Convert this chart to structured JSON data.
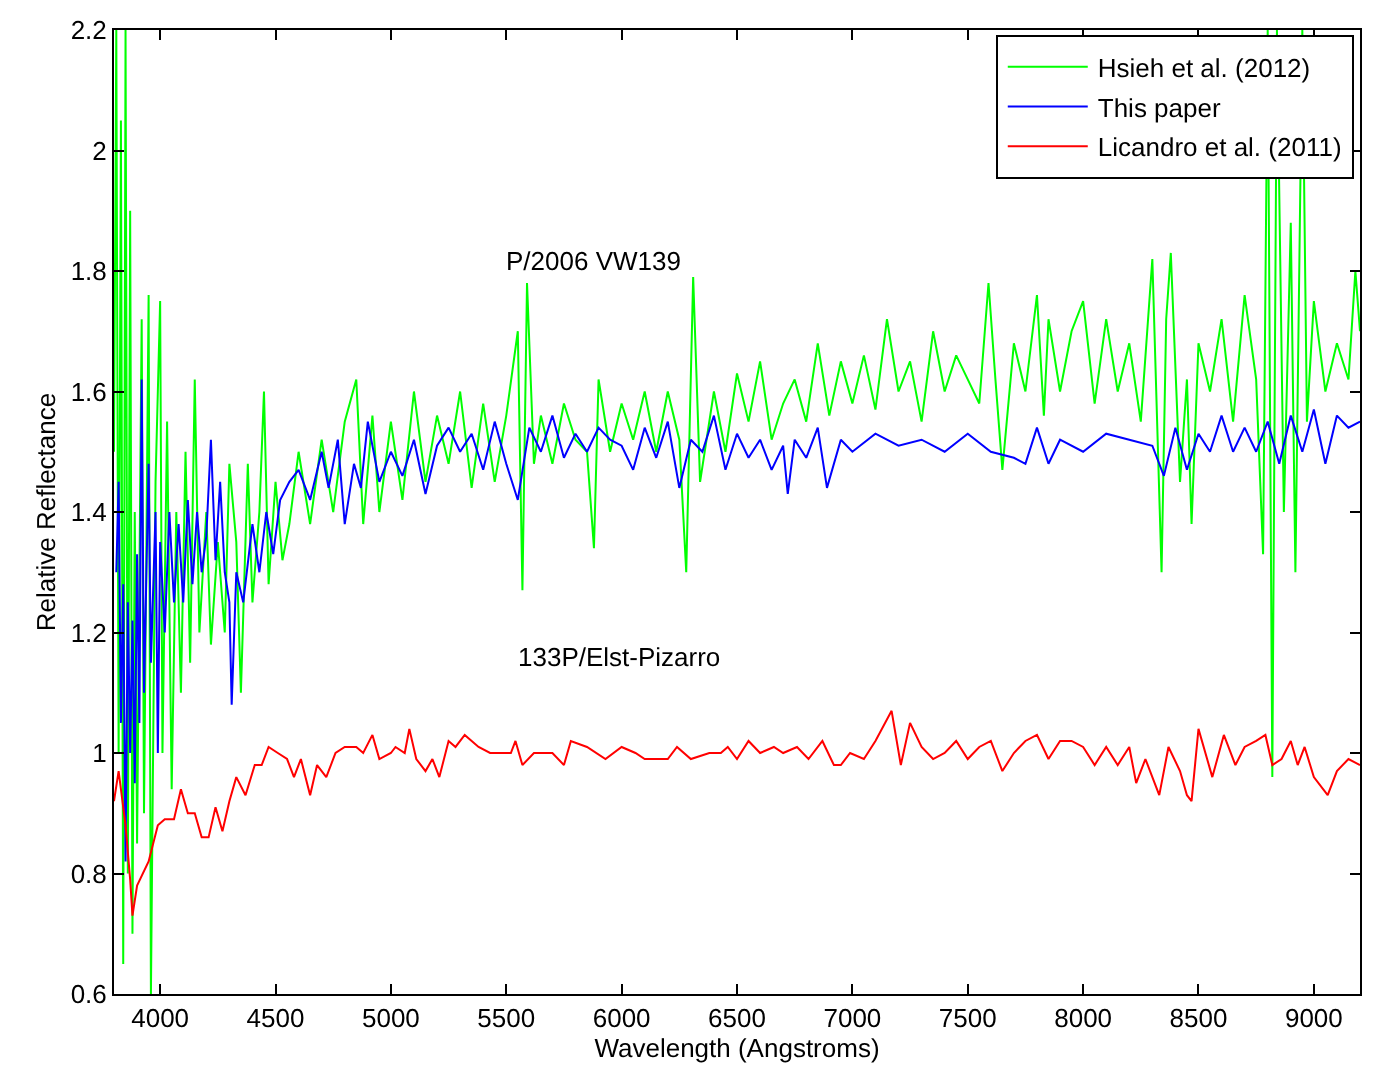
{
  "chart_data": {
    "type": "line",
    "xlabel": "Wavelength (Angstroms)",
    "ylabel": "Relative Reflectance",
    "xlim": [
      3800,
      9200
    ],
    "ylim": [
      0.6,
      2.2
    ],
    "xticks": [
      4000,
      4500,
      5000,
      5500,
      6000,
      6500,
      7000,
      7500,
      8000,
      8500,
      9000
    ],
    "yticks": [
      0.6,
      0.8,
      1,
      1.2,
      1.4,
      1.6,
      1.8,
      2,
      2.2
    ],
    "legend": "top right",
    "marker": "none",
    "line_style": "solid",
    "annotations": [
      "P/2006 VW139",
      "133P/Elst-Pizarro"
    ],
    "series": [
      {
        "name": "Hsieh et al. (2012)",
        "color": "#00ff00",
        "x": [
          3800,
          3810,
          3820,
          3830,
          3840,
          3850,
          3860,
          3870,
          3880,
          3890,
          3900,
          3920,
          3930,
          3950,
          3960,
          3980,
          4000,
          4010,
          4030,
          4050,
          4070,
          4090,
          4110,
          4130,
          4150,
          4170,
          4200,
          4220,
          4250,
          4280,
          4300,
          4330,
          4350,
          4380,
          4400,
          4430,
          4450,
          4470,
          4500,
          4530,
          4560,
          4600,
          4650,
          4700,
          4750,
          4800,
          4850,
          4880,
          4920,
          4950,
          5000,
          5050,
          5100,
          5150,
          5200,
          5250,
          5300,
          5350,
          5400,
          5450,
          5500,
          5550,
          5570,
          5590,
          5620,
          5650,
          5700,
          5750,
          5800,
          5850,
          5880,
          5900,
          5950,
          6000,
          6050,
          6100,
          6150,
          6200,
          6250,
          6280,
          6310,
          6340,
          6400,
          6450,
          6500,
          6550,
          6600,
          6650,
          6700,
          6750,
          6800,
          6850,
          6900,
          6950,
          7000,
          7050,
          7100,
          7150,
          7200,
          7250,
          7300,
          7350,
          7400,
          7450,
          7500,
          7550,
          7590,
          7620,
          7650,
          7700,
          7750,
          7800,
          7830,
          7850,
          7900,
          7950,
          8000,
          8050,
          8100,
          8150,
          8200,
          8250,
          8300,
          8340,
          8360,
          8380,
          8420,
          8450,
          8470,
          8500,
          8550,
          8600,
          8650,
          8700,
          8750,
          8780,
          8800,
          8820,
          8840,
          8870,
          8900,
          8920,
          8950,
          8970,
          9000,
          9050,
          9100,
          9150,
          9180,
          9200
        ],
        "values": [
          1.5,
          2.2,
          1.0,
          2.05,
          0.65,
          2.2,
          0.8,
          1.9,
          0.7,
          1.4,
          0.85,
          1.72,
          0.9,
          1.76,
          0.6,
          1.45,
          1.75,
          1.0,
          1.55,
          0.94,
          1.4,
          1.1,
          1.5,
          1.15,
          1.62,
          1.2,
          1.4,
          1.18,
          1.35,
          1.2,
          1.48,
          1.35,
          1.1,
          1.48,
          1.25,
          1.4,
          1.6,
          1.28,
          1.45,
          1.32,
          1.38,
          1.5,
          1.38,
          1.52,
          1.4,
          1.55,
          1.62,
          1.38,
          1.56,
          1.4,
          1.55,
          1.42,
          1.6,
          1.45,
          1.56,
          1.48,
          1.6,
          1.44,
          1.58,
          1.45,
          1.56,
          1.7,
          1.27,
          1.78,
          1.48,
          1.56,
          1.48,
          1.58,
          1.52,
          1.5,
          1.34,
          1.62,
          1.5,
          1.58,
          1.52,
          1.6,
          1.5,
          1.6,
          1.52,
          1.3,
          1.79,
          1.45,
          1.6,
          1.5,
          1.63,
          1.55,
          1.65,
          1.52,
          1.58,
          1.62,
          1.55,
          1.68,
          1.56,
          1.65,
          1.58,
          1.66,
          1.57,
          1.72,
          1.6,
          1.65,
          1.55,
          1.7,
          1.6,
          1.66,
          1.62,
          1.58,
          1.78,
          1.62,
          1.47,
          1.68,
          1.6,
          1.76,
          1.56,
          1.72,
          1.6,
          1.7,
          1.75,
          1.58,
          1.72,
          1.6,
          1.68,
          1.55,
          1.82,
          1.3,
          1.72,
          1.83,
          1.45,
          1.62,
          1.38,
          1.68,
          1.6,
          1.72,
          1.55,
          1.76,
          1.62,
          1.33,
          2.2,
          0.96,
          2.2,
          1.4,
          1.88,
          1.3,
          2.2,
          1.55,
          1.75,
          1.6,
          1.68,
          1.62,
          1.8,
          1.7
        ]
      },
      {
        "name": "This paper",
        "color": "#0000ff",
        "x": [
          3810,
          3820,
          3830,
          3840,
          3850,
          3860,
          3870,
          3880,
          3890,
          3900,
          3910,
          3920,
          3930,
          3950,
          3960,
          3980,
          3990,
          4000,
          4020,
          4040,
          4060,
          4080,
          4100,
          4120,
          4140,
          4160,
          4180,
          4200,
          4220,
          4240,
          4260,
          4280,
          4300,
          4310,
          4330,
          4360,
          4400,
          4430,
          4460,
          4490,
          4520,
          4560,
          4600,
          4650,
          4700,
          4730,
          4770,
          4800,
          4840,
          4870,
          4900,
          4950,
          5000,
          5050,
          5100,
          5150,
          5200,
          5250,
          5300,
          5350,
          5400,
          5450,
          5500,
          5550,
          5600,
          5650,
          5700,
          5750,
          5800,
          5850,
          5900,
          5950,
          6000,
          6050,
          6100,
          6150,
          6200,
          6250,
          6300,
          6350,
          6400,
          6450,
          6500,
          6550,
          6600,
          6650,
          6700,
          6720,
          6750,
          6800,
          6850,
          6890,
          6950,
          7000,
          7100,
          7200,
          7300,
          7400,
          7500,
          7600,
          7700,
          7750,
          7800,
          7850,
          7900,
          8000,
          8100,
          8200,
          8300,
          8350,
          8400,
          8450,
          8500,
          8550,
          8600,
          8650,
          8700,
          8750,
          8800,
          8850,
          8900,
          8950,
          9000,
          9050,
          9100,
          9150,
          9200
        ],
        "values": [
          1.3,
          1.45,
          1.05,
          1.28,
          0.82,
          1.25,
          1.0,
          1.22,
          0.95,
          1.33,
          1.05,
          1.62,
          1.1,
          1.48,
          1.15,
          1.4,
          1.0,
          1.35,
          1.2,
          1.4,
          1.25,
          1.38,
          1.25,
          1.42,
          1.28,
          1.4,
          1.3,
          1.36,
          1.52,
          1.32,
          1.45,
          1.3,
          1.25,
          1.08,
          1.3,
          1.25,
          1.38,
          1.3,
          1.4,
          1.33,
          1.42,
          1.45,
          1.47,
          1.42,
          1.5,
          1.44,
          1.52,
          1.38,
          1.48,
          1.44,
          1.55,
          1.45,
          1.5,
          1.46,
          1.52,
          1.43,
          1.51,
          1.54,
          1.5,
          1.53,
          1.47,
          1.55,
          1.48,
          1.42,
          1.54,
          1.5,
          1.56,
          1.49,
          1.53,
          1.5,
          1.54,
          1.52,
          1.51,
          1.47,
          1.54,
          1.49,
          1.55,
          1.44,
          1.52,
          1.5,
          1.56,
          1.47,
          1.53,
          1.49,
          1.52,
          1.47,
          1.51,
          1.43,
          1.52,
          1.49,
          1.54,
          1.44,
          1.52,
          1.5,
          1.53,
          1.51,
          1.52,
          1.5,
          1.53,
          1.5,
          1.49,
          1.48,
          1.54,
          1.48,
          1.52,
          1.5,
          1.53,
          1.52,
          1.51,
          1.46,
          1.54,
          1.47,
          1.53,
          1.5,
          1.56,
          1.5,
          1.54,
          1.5,
          1.55,
          1.48,
          1.56,
          1.5,
          1.57,
          1.48,
          1.56,
          1.54,
          1.55
        ]
      },
      {
        "name": "Licandro et al. (2011)",
        "color": "#ff0000",
        "x": [
          3800,
          3820,
          3850,
          3870,
          3880,
          3900,
          3950,
          3990,
          4020,
          4060,
          4090,
          4120,
          4150,
          4180,
          4210,
          4240,
          4270,
          4300,
          4330,
          4370,
          4410,
          4440,
          4470,
          4510,
          4550,
          4580,
          4610,
          4650,
          4680,
          4720,
          4760,
          4800,
          4850,
          4880,
          4920,
          4950,
          5000,
          5020,
          5060,
          5080,
          5110,
          5150,
          5180,
          5210,
          5250,
          5280,
          5320,
          5380,
          5430,
          5520,
          5540,
          5570,
          5620,
          5700,
          5750,
          5780,
          5850,
          5930,
          6000,
          6060,
          6100,
          6200,
          6240,
          6300,
          6380,
          6430,
          6460,
          6500,
          6550,
          6600,
          6660,
          6700,
          6760,
          6810,
          6870,
          6920,
          6950,
          6990,
          7050,
          7100,
          7170,
          7210,
          7250,
          7300,
          7350,
          7400,
          7450,
          7500,
          7550,
          7600,
          7650,
          7700,
          7750,
          7800,
          7850,
          7900,
          7950,
          8000,
          8050,
          8100,
          8150,
          8200,
          8230,
          8270,
          8330,
          8370,
          8420,
          8450,
          8470,
          8500,
          8560,
          8610,
          8660,
          8700,
          8750,
          8790,
          8820,
          8860,
          8900,
          8930,
          8960,
          9000,
          9060,
          9100,
          9150,
          9200
        ],
        "values": [
          0.92,
          0.97,
          0.88,
          0.79,
          0.73,
          0.78,
          0.82,
          0.88,
          0.89,
          0.89,
          0.94,
          0.9,
          0.9,
          0.86,
          0.86,
          0.91,
          0.87,
          0.92,
          0.96,
          0.93,
          0.98,
          0.98,
          1.01,
          1.0,
          0.99,
          0.96,
          0.99,
          0.93,
          0.98,
          0.96,
          1.0,
          1.01,
          1.01,
          1.0,
          1.03,
          0.99,
          1.0,
          1.01,
          1.0,
          1.04,
          0.99,
          0.97,
          0.99,
          0.96,
          1.02,
          1.01,
          1.03,
          1.01,
          1.0,
          1.0,
          1.02,
          0.98,
          1.0,
          1.0,
          0.98,
          1.02,
          1.01,
          0.99,
          1.01,
          1.0,
          0.99,
          0.99,
          1.01,
          0.99,
          1.0,
          1.0,
          1.01,
          0.99,
          1.02,
          1.0,
          1.01,
          1.0,
          1.01,
          0.99,
          1.02,
          0.98,
          0.98,
          1.0,
          0.99,
          1.02,
          1.07,
          0.98,
          1.05,
          1.01,
          0.99,
          1.0,
          1.02,
          0.99,
          1.01,
          1.02,
          0.97,
          1.0,
          1.02,
          1.03,
          0.99,
          1.02,
          1.02,
          1.01,
          0.98,
          1.01,
          0.98,
          1.01,
          0.95,
          0.99,
          0.93,
          1.01,
          0.97,
          0.93,
          0.92,
          1.04,
          0.96,
          1.03,
          0.98,
          1.01,
          1.02,
          1.03,
          0.98,
          0.99,
          1.02,
          0.98,
          1.01,
          0.96,
          0.93,
          0.97,
          0.99,
          0.98
        ]
      }
    ]
  }
}
